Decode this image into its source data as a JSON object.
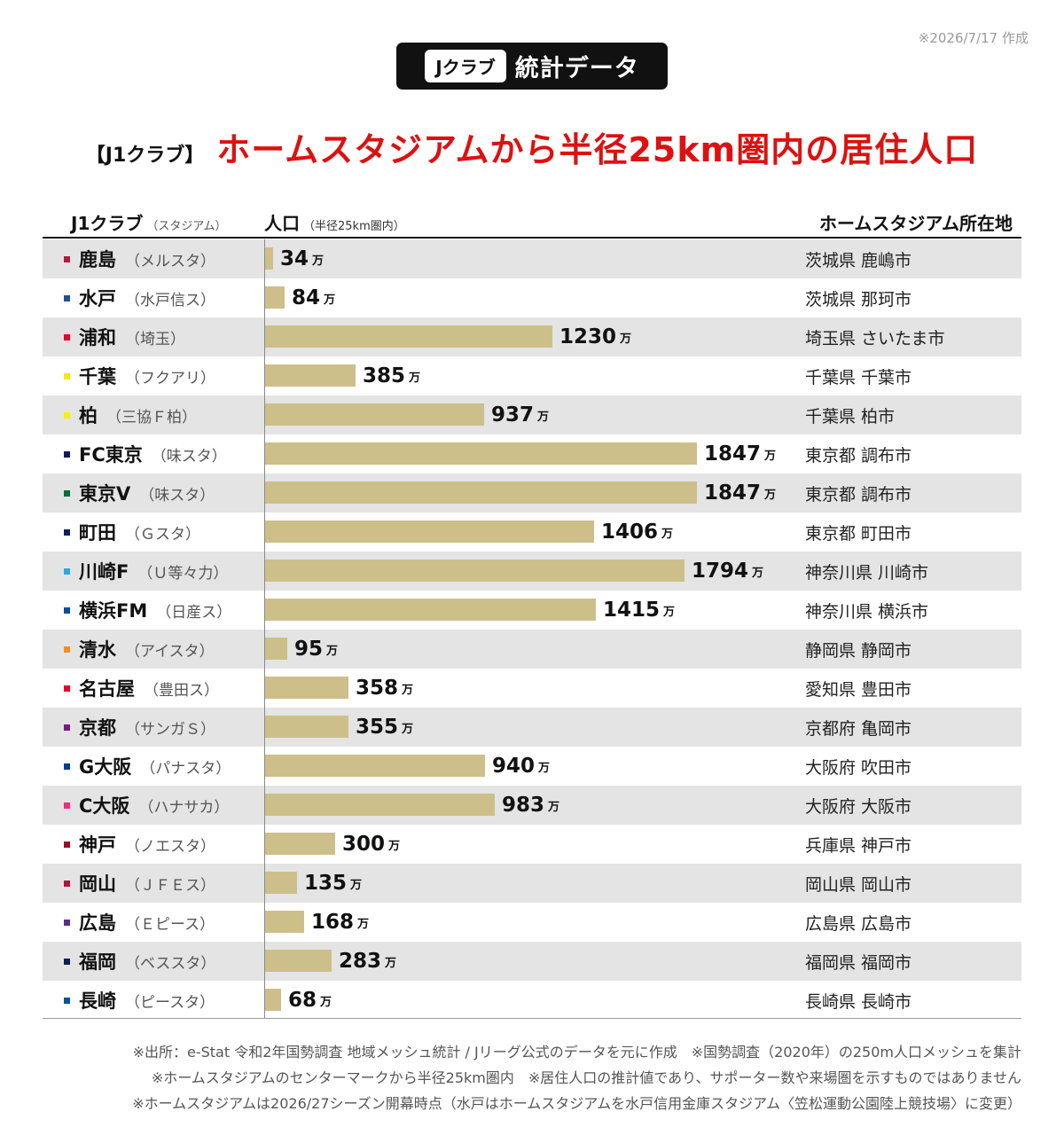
{
  "date_note": "※2026/7/17 作成",
  "badge": {
    "pill": "Jクラブ",
    "text": "統計データ"
  },
  "title": {
    "prefix": "【J1クラブ】",
    "main": "ホームスタジアムから半径25km圏内の居住人口"
  },
  "header": {
    "club": "J1クラブ",
    "club_sub": "（スタジアム）",
    "pop": "人口",
    "pop_sub": "（半径25km圏内）",
    "location": "ホームスタジアム所在地"
  },
  "unit": "万",
  "chart_data": {
    "type": "bar",
    "orientation": "horizontal",
    "title": "ホームスタジアムから半径25km圏内の居住人口",
    "xlabel": "人口（半径25km圏内）",
    "unit": "万",
    "xlim": [
      0,
      2500
    ],
    "categories": [
      "鹿島",
      "水戸",
      "浦和",
      "千葉",
      "柏",
      "FC東京",
      "東京V",
      "町田",
      "川崎F",
      "横浜FM",
      "清水",
      "名古屋",
      "京都",
      "G大阪",
      "C大阪",
      "神戸",
      "岡山",
      "広島",
      "福岡",
      "長崎"
    ],
    "values": [
      34,
      84,
      1230,
      385,
      937,
      1847,
      1847,
      1406,
      1794,
      1415,
      95,
      358,
      355,
      940,
      983,
      300,
      135,
      168,
      283,
      68
    ]
  },
  "rows": [
    {
      "club": "鹿島",
      "stadium": "（メルスタ）",
      "value": "34",
      "location": "茨城県 鹿嶋市",
      "color": "#b01c3c"
    },
    {
      "club": "水戸",
      "stadium": "（水戸信ス）",
      "value": "84",
      "location": "茨城県 那珂市",
      "color": "#1d4fa0"
    },
    {
      "club": "浦和",
      "stadium": "（埼玉）",
      "value": "1230",
      "location": "埼玉県 さいたま市",
      "color": "#e60026"
    },
    {
      "club": "千葉",
      "stadium": "（フクアリ）",
      "value": "385",
      "location": "千葉県 千葉市",
      "color": "#ffe600"
    },
    {
      "club": "柏",
      "stadium": "（三協Ｆ柏）",
      "value": "937",
      "location": "千葉県 柏市",
      "color": "#ffee00"
    },
    {
      "club": "FC東京",
      "stadium": "（味スタ）",
      "value": "1847",
      "location": "東京都 調布市",
      "color": "#0a1a5c"
    },
    {
      "club": "東京V",
      "stadium": "（味スタ）",
      "value": "1847",
      "location": "東京都 調布市",
      "color": "#006e3a"
    },
    {
      "club": "町田",
      "stadium": "（Ｇスタ）",
      "value": "1406",
      "location": "東京都 町田市",
      "color": "#0b1f66"
    },
    {
      "club": "川崎F",
      "stadium": "（Ｕ等々力）",
      "value": "1794",
      "location": "神奈川県 川崎市",
      "color": "#2ea8e0"
    },
    {
      "club": "横浜FM",
      "stadium": "（日産ス）",
      "value": "1415",
      "location": "神奈川県 横浜市",
      "color": "#004ea2"
    },
    {
      "club": "清水",
      "stadium": "（アイスタ）",
      "value": "95",
      "location": "静岡県 静岡市",
      "color": "#ff8a1e"
    },
    {
      "club": "名古屋",
      "stadium": "（豊田ス）",
      "value": "358",
      "location": "愛知県 豊田市",
      "color": "#e60026"
    },
    {
      "club": "京都",
      "stadium": "（サンガＳ）",
      "value": "355",
      "location": "京都府 亀岡市",
      "color": "#7a1a7e"
    },
    {
      "club": "G大阪",
      "stadium": "（パナスタ）",
      "value": "940",
      "location": "大阪府 吹田市",
      "color": "#003a96"
    },
    {
      "club": "C大阪",
      "stadium": "（ハナサカ）",
      "value": "983",
      "location": "大阪府 大阪市",
      "color": "#ec2c84"
    },
    {
      "club": "神戸",
      "stadium": "（ノエスタ）",
      "value": "300",
      "location": "兵庫県 神戸市",
      "color": "#9b0d25"
    },
    {
      "club": "岡山",
      "stadium": "（ＪＦＥス）",
      "value": "135",
      "location": "岡山県 岡山市",
      "color": "#b5123f"
    },
    {
      "club": "広島",
      "stadium": "（Ｅピース）",
      "value": "168",
      "location": "広島県 広島市",
      "color": "#5b2d90"
    },
    {
      "club": "福岡",
      "stadium": "（ベススタ）",
      "value": "283",
      "location": "福岡県 福岡市",
      "color": "#0a1e5c"
    },
    {
      "club": "長崎",
      "stadium": "（ピースタ）",
      "value": "68",
      "location": "長崎県 長崎市",
      "color": "#0050a0"
    }
  ],
  "footnotes": [
    "※出所：e-Stat 令和2年国勢調査 地域メッシュ統計 / Jリーグ公式のデータを元に作成　※国勢調査（2020年）の250m人口メッシュを集計",
    "※ホームスタジアムのセンターマークから半径25km圏内　※居住人口の推計値であり、サポーター数や来場圏を示すものではありません",
    "※ホームスタジアムは2026/27シーズン開幕時点（水戸はホームスタジアムを水戸信用金庫スタジアム〈笠松運動公園陸上競技場〉に変更）"
  ]
}
